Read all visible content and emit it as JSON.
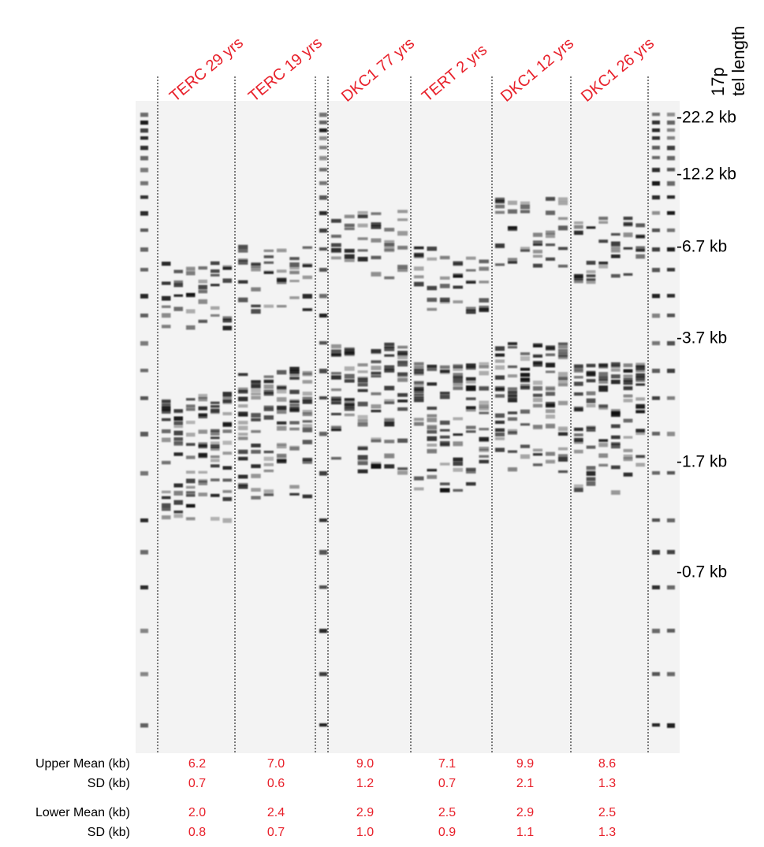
{
  "lanes": [
    "TERC 29 yrs",
    "TERC 19 yrs",
    "DKC1  77 yrs",
    "TERT 2 yrs",
    "DKC1 12 yrs",
    "DKC1 26 yrs"
  ],
  "axis_title": [
    "17p",
    "tel length"
  ],
  "markers": [
    "-22.2 kb",
    "-12.2 kb",
    "-6.7 kb",
    "-3.7 kb",
    "-1.7 kb",
    "-0.7 kb"
  ],
  "table": {
    "rows": [
      {
        "label": "Upper Mean (kb)",
        "values": [
          "6.2",
          "7.0",
          "9.0",
          "7.1",
          "9.9",
          "8.6"
        ]
      },
      {
        "label": "SD (kb)",
        "values": [
          "0.7",
          "0.6",
          "1.2",
          "0.7",
          "2.1",
          "1.3"
        ]
      },
      {
        "label": "Lower Mean (kb)",
        "values": [
          "2.0",
          "2.4",
          "2.9",
          "2.5",
          "2.9",
          "2.5"
        ]
      },
      {
        "label": "SD (kb)",
        "values": [
          "0.8",
          "0.7",
          "1.0",
          "0.9",
          "1.1",
          "1.3"
        ]
      }
    ]
  }
}
